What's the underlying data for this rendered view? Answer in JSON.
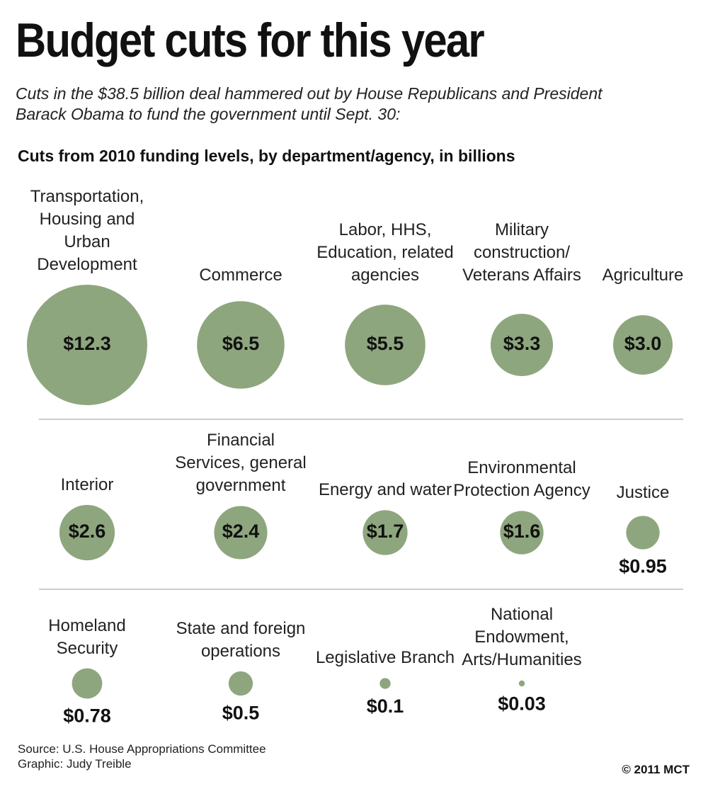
{
  "chart_data": {
    "type": "bubble",
    "title": "Budget cuts for this year",
    "subtitle": "Cuts in the $38.5 billion deal hammered out by House Republicans and President Barack Obama to fund the government until Sept. 30:",
    "heading": "Cuts from 2010 funding levels, by department/agency, in billions",
    "categories": [
      "Transportation, Housing and Urban Development",
      "Commerce",
      "Labor, HHS, Education, related agencies",
      "Military construction/ Veterans Affairs",
      "Agriculture",
      "Interior",
      "Financial Services, general government",
      "Energy and water",
      "Environmental Protection Agency",
      "Justice",
      "Homeland Security",
      "State and foreign operations",
      "Legislative Branch",
      "National Endowment, Arts/Humanities"
    ],
    "values": [
      12.3,
      6.5,
      5.5,
      3.3,
      3.0,
      2.6,
      2.4,
      1.7,
      1.6,
      0.95,
      0.78,
      0.5,
      0.1,
      0.03
    ],
    "value_labels": [
      "$12.3",
      "$6.5",
      "$5.5",
      "$3.3",
      "$3.0",
      "$2.6",
      "$2.4",
      "$1.7",
      "$1.6",
      "$0.95",
      "$0.78",
      "$0.5",
      "$0.1",
      "$0.03"
    ],
    "color": "#8ea67e",
    "source": "Source: U.S. House Appropriations Committee",
    "credit": "Graphic: Judy Treible",
    "copyright": "© 2011 MCT"
  }
}
